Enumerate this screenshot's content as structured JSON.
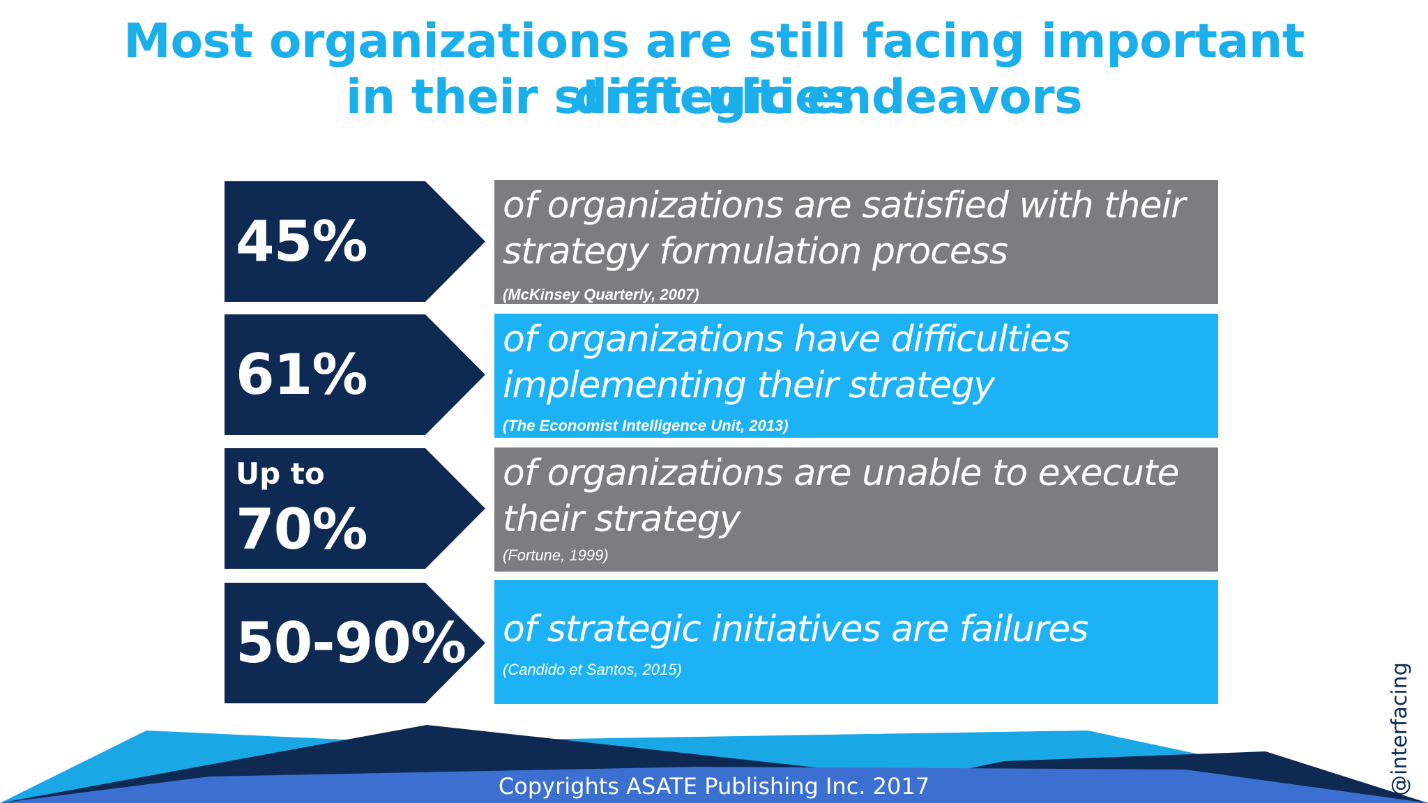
{
  "title": {
    "line1": "Most organizations are still facing important difficulties",
    "line2": "in their strategic endeavors"
  },
  "rows": [
    {
      "prefix": "",
      "value": "45%",
      "text": "of organizations are satisfied with their strategy formulation process",
      "source": "(McKinsey Quarterly, 2007)",
      "color": "#7d7c7e"
    },
    {
      "prefix": "",
      "value": "61%",
      "text": "of organizations have difficulties implementing their strategy",
      "source": "(The Economist Intelligence Unit, 2013)",
      "color": "#1cb2f5"
    },
    {
      "prefix": "Up to",
      "value": "70%",
      "text": "of organizations are unable to execute their strategy",
      "source": "(Fortune, 1999)",
      "color": "#7d7c7e"
    },
    {
      "prefix": "",
      "value": "50-90%",
      "text": "of strategic initiatives are failures",
      "source": "(Candido et Santos, 2015)",
      "color": "#1cb2f5"
    }
  ],
  "footer": {
    "copyright": "Copyrights ASATE Publishing Inc. 2017",
    "handle": "@interfacing"
  },
  "colors": {
    "title": "#1aafeb",
    "navy": "#0e2a53",
    "gray": "#7d7c7e",
    "sky": "#1cb2f5",
    "footer_blue": "#3b6fd0"
  }
}
